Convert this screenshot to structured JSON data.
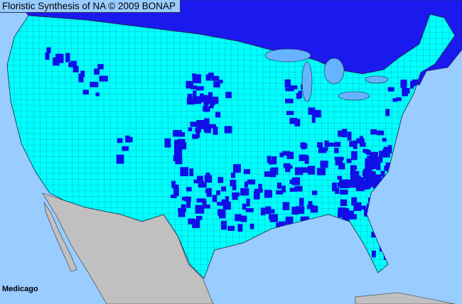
{
  "title": "Floristic Synthesis of NA © 2009 BONAP",
  "taxon_label": "Medicago",
  "colors": {
    "ocean": "#99ccff",
    "canada": "#1a1aee",
    "us_present_state": "#00ffff",
    "county_present": "#1010e6",
    "mexico": "#c0c0c0",
    "lakes": "#66b3ff",
    "borders": "#333333"
  },
  "legend_meaning": {
    "cyan": "present in state",
    "blue": "present in county"
  }
}
